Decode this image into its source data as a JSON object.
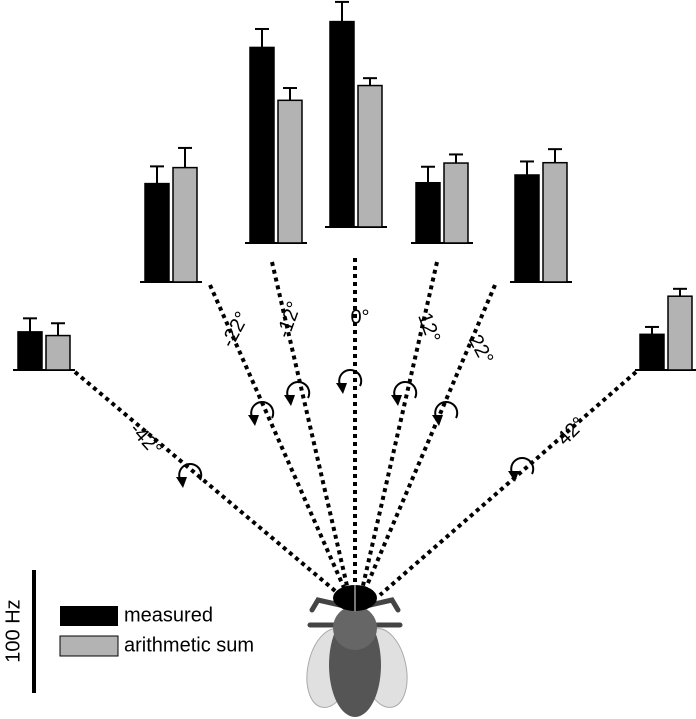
{
  "chart_data": {
    "type": "bar",
    "categories": [
      "-42°",
      "-22°",
      "-12°",
      "0°",
      "12°",
      "22°",
      "42°"
    ],
    "series": [
      {
        "name": "measured",
        "color": "#000000",
        "values": [
          31,
          80,
          159,
          167,
          49,
          87,
          29
        ],
        "errors": [
          11,
          14,
          15,
          16,
          13,
          11,
          6
        ]
      },
      {
        "name": "arithmetic sum",
        "color": "#b3b3b3",
        "values": [
          28,
          93,
          116,
          115,
          65,
          97,
          60
        ],
        "errors": [
          10,
          16,
          10,
          6,
          7,
          11,
          6
        ]
      }
    ],
    "scale_bar": {
      "value": 100,
      "label": "100 Hz"
    }
  }
}
